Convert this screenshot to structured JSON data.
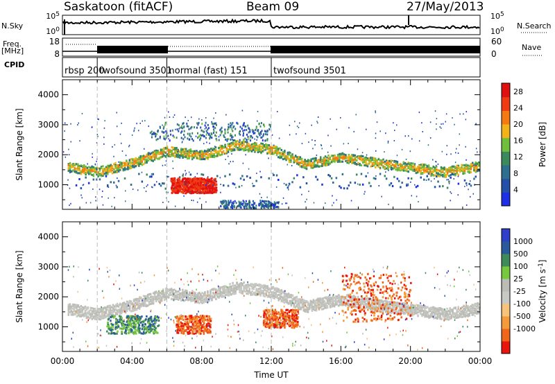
{
  "header": {
    "title": "Saskatoon (fitACF)",
    "beam": "Beam 09",
    "date": "27/May/2013"
  },
  "noise_panel": {
    "left_label": "N.Sky",
    "right_label": "N.Search",
    "left_ticks": [
      "10^5",
      "10^0"
    ],
    "right_ticks": [
      "10^5",
      "10^0"
    ]
  },
  "freq_panel": {
    "left_label_1": "Freq.",
    "left_label_2": "[MHz]",
    "left_ticks": [
      "18",
      "8"
    ],
    "right_label": "Nave",
    "right_ticks": [
      "60",
      "0"
    ]
  },
  "cpid_panel": {
    "label": "CPID",
    "modes": [
      {
        "label": "rbsp 200",
        "start_hour": 0
      },
      {
        "label": "twofsound 3501",
        "start_hour": 2
      },
      {
        "label": "normal (fast) 151",
        "start_hour": 6
      },
      {
        "label": "twofsound 3501",
        "start_hour": 12
      }
    ]
  },
  "colors": {
    "power_scale": [
      "#1f2fe6",
      "#2450a8",
      "#2e6e8e",
      "#3c8a5c",
      "#6fbe3c",
      "#f2b21a",
      "#f57a14",
      "#ef3a12",
      "#e01010"
    ],
    "velocity_scale": [
      "#e8160d",
      "#f0661b",
      "#f39a3a",
      "#f7c27a",
      "#c8c8c4",
      "#bcbcb6",
      "#78c83e",
      "#3e8a58",
      "#2a5a9c",
      "#2f3fc8"
    ]
  },
  "chart_data": [
    {
      "type": "heatmap",
      "title": "Power",
      "ylabel": "Slant Range [km]",
      "xlabel": "",
      "x_ticks": [
        "00:00",
        "04:00",
        "08:00",
        "12:00",
        "16:00",
        "20:00",
        "00:00"
      ],
      "y_ticks": [
        "1000",
        "2000",
        "3000",
        "4000"
      ],
      "xlim_hours": [
        0,
        24
      ],
      "ylim_km": [
        180,
        4500
      ],
      "colorbar": {
        "label": "Power [dB]",
        "ticks": [
          "4",
          "8",
          "12",
          "16",
          "20",
          "24",
          "28"
        ],
        "range": [
          0,
          30
        ]
      },
      "features": [
        {
          "name": "main echo band",
          "hours": [
            0,
            24
          ],
          "range_km_at": [
            [
              0,
              1650
            ],
            [
              2,
              1450
            ],
            [
              4,
              1750
            ],
            [
              6,
              2150
            ],
            [
              8,
              2000
            ],
            [
              10,
              2350
            ],
            [
              12,
              2200
            ],
            [
              14,
              1700
            ],
            [
              16,
              1950
            ],
            [
              18,
              1750
            ],
            [
              20,
              1600
            ],
            [
              22,
              1450
            ],
            [
              24,
              1650
            ]
          ],
          "power_db": 12
        },
        {
          "name": "strong echo patch",
          "hours": [
            6.2,
            8.8
          ],
          "range_km": [
            750,
            1250
          ],
          "power_db": 28
        },
        {
          "name": "upper echo band",
          "hours": [
            5,
            12
          ],
          "range_km": [
            2500,
            3100
          ],
          "power_db": 8
        },
        {
          "name": "near range echoes",
          "hours": [
            9,
            12.5
          ],
          "range_km": [
            250,
            500
          ],
          "power_db": 6
        }
      ]
    },
    {
      "type": "heatmap",
      "title": "Velocity",
      "ylabel": "Slant Range [km]",
      "xlabel": "Time UT",
      "x_ticks": [
        "00:00",
        "04:00",
        "08:00",
        "12:00",
        "16:00",
        "20:00",
        "00:00"
      ],
      "y_ticks": [
        "1000",
        "2000",
        "3000",
        "4000"
      ],
      "xlim_hours": [
        0,
        24
      ],
      "ylim_km": [
        180,
        4500
      ],
      "colorbar": {
        "label": "Velocity [m s^-1]",
        "ticks": [
          "1000",
          "500",
          "100",
          "25",
          "-25",
          "-100",
          "-500",
          "-1000"
        ]
      },
      "features": [
        {
          "name": "low velocity ground scatter band",
          "hours": [
            0,
            24
          ],
          "velocity_ms": 0
        },
        {
          "name": "positive velocity patch",
          "hours": [
            2.5,
            5.5
          ],
          "range_km": [
            800,
            1400
          ],
          "velocity_ms": 150
        },
        {
          "name": "negative velocity patch",
          "hours": [
            6.5,
            8.5
          ],
          "range_km": [
            800,
            1400
          ],
          "velocity_ms": -300
        },
        {
          "name": "negative velocity patch",
          "hours": [
            11.5,
            13.5
          ],
          "range_km": [
            1000,
            1600
          ],
          "velocity_ms": -400
        },
        {
          "name": "negative velocity streaks",
          "hours": [
            16,
            20
          ],
          "range_km": [
            1200,
            2800
          ],
          "velocity_ms": -400
        }
      ]
    }
  ]
}
